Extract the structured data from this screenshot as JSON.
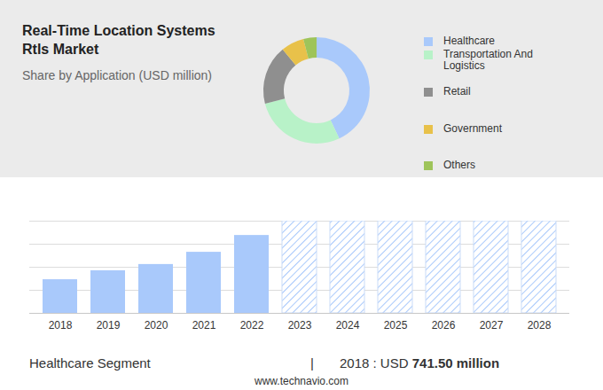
{
  "chart_data": [
    {
      "type": "pie",
      "title": "Real-Time Location Systems Rtls Market",
      "subtitle": "Share by Application (USD million)",
      "categories": [
        "Healthcare",
        "Transportation And Logistics",
        "Retail",
        "Government",
        "Others"
      ],
      "values": [
        43,
        28,
        18,
        7,
        4
      ],
      "colors": [
        "#a9c9fb",
        "#b8f2c8",
        "#8f8f8f",
        "#e8c14a",
        "#9ec45a"
      ],
      "legend": "right"
    },
    {
      "type": "bar",
      "categories": [
        "2018",
        "2019",
        "2020",
        "2021",
        "2022",
        "2023",
        "2024",
        "2025",
        "2026",
        "2027",
        "2028"
      ],
      "values": [
        1.46,
        1.85,
        2.12,
        2.65,
        3.38,
        null,
        null,
        null,
        null,
        null,
        null
      ],
      "color": "#a9c9fb",
      "ylim": [
        0,
        4
      ],
      "yticks": [
        0,
        1,
        2,
        3,
        4
      ],
      "grid": true,
      "tick_labels": "x",
      "annotations": [
        "Healthcare Segment",
        "|",
        "2018 : USD",
        "741.50 million",
        "www.technavio.com"
      ]
    }
  ]
}
